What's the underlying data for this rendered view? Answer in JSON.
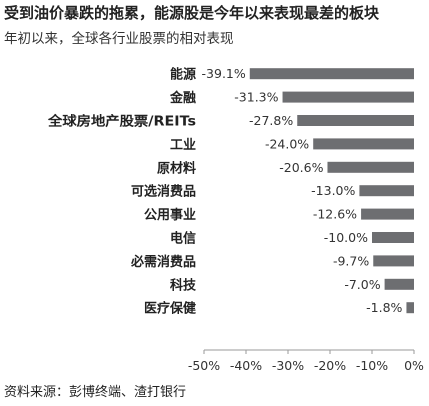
{
  "title": "受到油价暴跌的拖累，能源股是今年以来表现最差的板块",
  "subtitle": "年初以来，全球各行业股票的相对表现",
  "source": "资料来源：彭博终端、渣打银行",
  "colors": {
    "bar": "#6d6e71",
    "axis": "#9a9a9a",
    "text": "#333333"
  },
  "chart_data": {
    "type": "bar",
    "orientation": "horizontal",
    "categories": [
      "能源",
      "金融",
      "全球房地产股票/REITs",
      "工业",
      "原材料",
      "可选消费品",
      "公用事业",
      "电信",
      "必需消费品",
      "科技",
      "医疗保健"
    ],
    "values": [
      -39.1,
      -31.3,
      -27.8,
      -24.0,
      -20.6,
      -13.0,
      -12.6,
      -10.0,
      -9.7,
      -7.0,
      -1.8
    ],
    "data_labels": [
      "-39.1%",
      "-31.3%",
      "-27.8%",
      "-24.0%",
      "-20.6%",
      "-13.0%",
      "-12.6%",
      "-10.0%",
      "-9.7%",
      "-7.0%",
      "-1.8%"
    ],
    "xlim": [
      -50,
      0
    ],
    "x_ticks": [
      -50,
      -40,
      -30,
      -20,
      -10,
      0
    ],
    "x_tick_labels": [
      "-50%",
      "-40%",
      "-30%",
      "-20%",
      "-10%",
      "0%"
    ],
    "grid": false,
    "legend": "none"
  }
}
